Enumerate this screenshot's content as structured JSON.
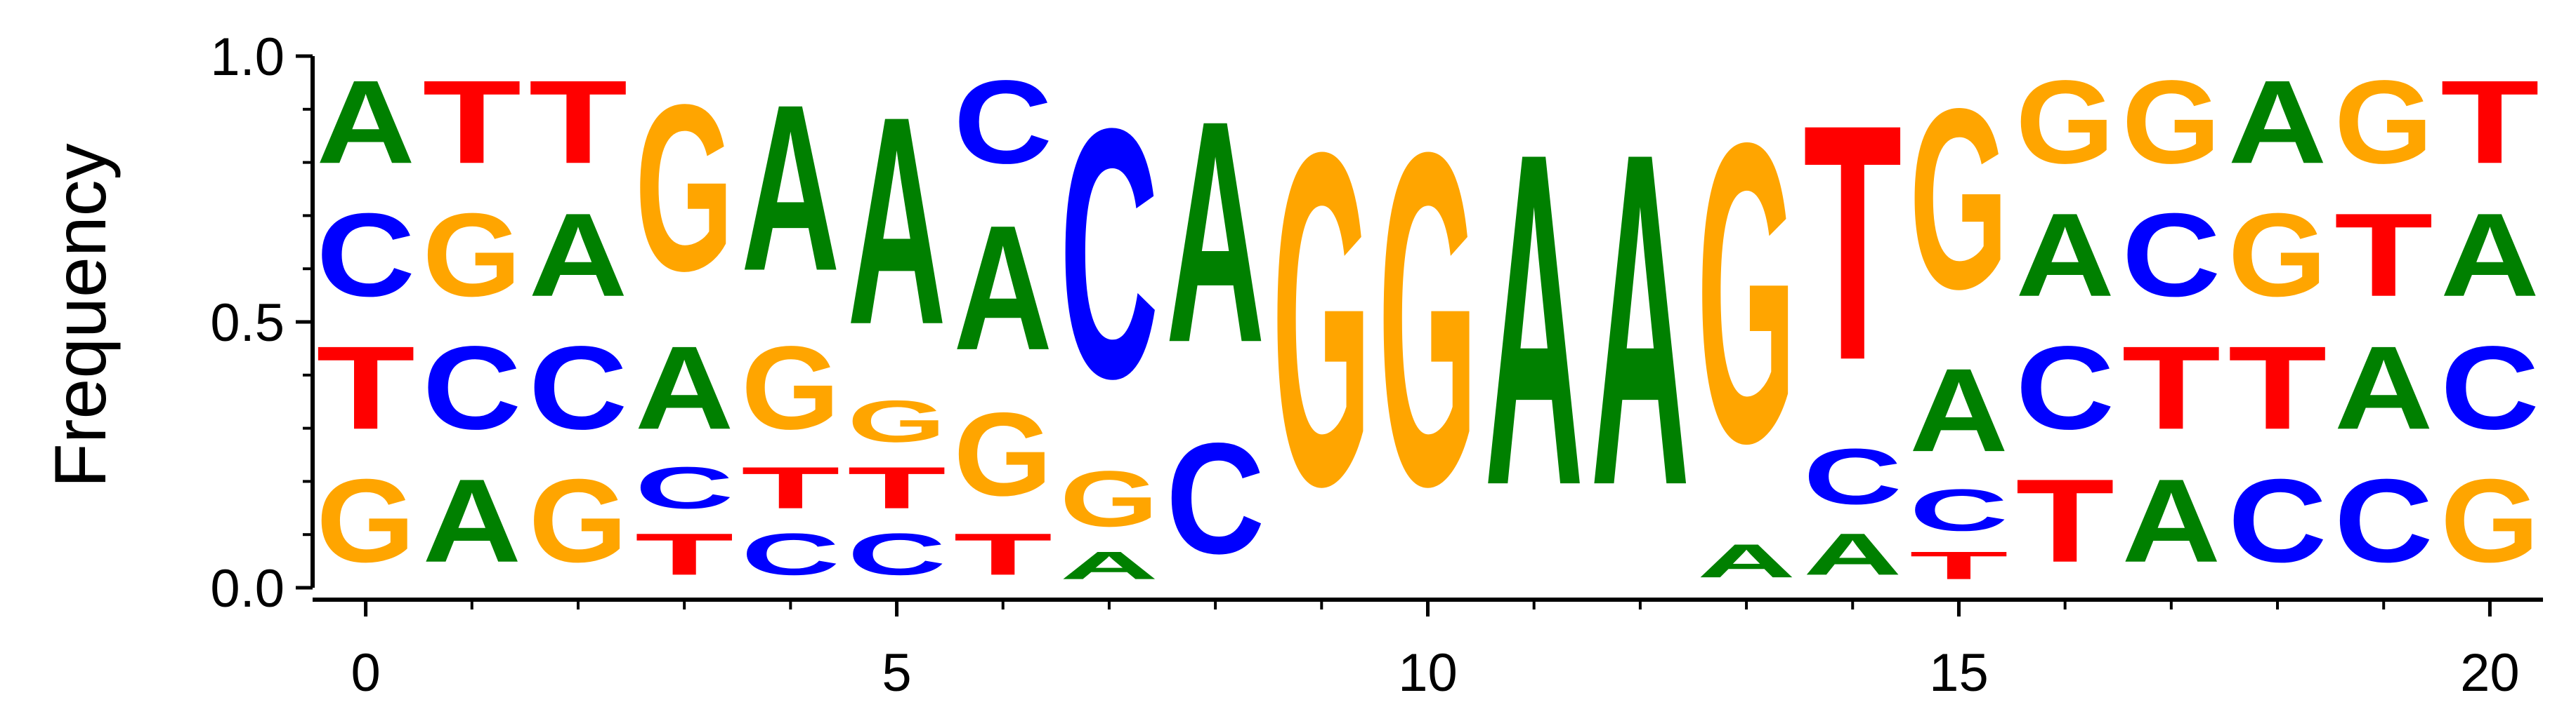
{
  "chart_data": {
    "type": "sequence-logo",
    "ylabel": "Frequency",
    "xlim": [
      -0.5,
      20.5
    ],
    "ylim": [
      0,
      1
    ],
    "xticks": [
      0,
      5,
      10,
      15,
      20
    ],
    "xtick_labels": [
      "0",
      "5",
      "10",
      "15",
      "20"
    ],
    "yticks": [
      0.0,
      0.5,
      1.0
    ],
    "ytick_labels": [
      "0.0",
      "0.5",
      "1.0"
    ],
    "colors": {
      "A": "#008000",
      "C": "#0000ff",
      "G": "#ffa500",
      "T": "#ff0000"
    },
    "positions": [
      {
        "x": 0,
        "stack": [
          [
            "G",
            0.25
          ],
          [
            "T",
            0.25
          ],
          [
            "C",
            0.25
          ],
          [
            "A",
            0.25
          ]
        ]
      },
      {
        "x": 1,
        "stack": [
          [
            "A",
            0.25
          ],
          [
            "C",
            0.25
          ],
          [
            "G",
            0.25
          ],
          [
            "T",
            0.25
          ]
        ]
      },
      {
        "x": 2,
        "stack": [
          [
            "G",
            0.25
          ],
          [
            "C",
            0.25
          ],
          [
            "A",
            0.25
          ],
          [
            "T",
            0.25
          ]
        ]
      },
      {
        "x": 3,
        "stack": [
          [
            "T",
            0.125
          ],
          [
            "C",
            0.125
          ],
          [
            "A",
            0.25
          ],
          [
            "G",
            0.5
          ]
        ]
      },
      {
        "x": 4,
        "stack": [
          [
            "C",
            0.125
          ],
          [
            "T",
            0.125
          ],
          [
            "G",
            0.25
          ],
          [
            "A",
            0.5
          ]
        ]
      },
      {
        "x": 5,
        "stack": [
          [
            "C",
            0.125
          ],
          [
            "T",
            0.125
          ],
          [
            "G",
            0.125
          ],
          [
            "A",
            0.625
          ]
        ]
      },
      {
        "x": 6,
        "stack": [
          [
            "T",
            0.125
          ],
          [
            "G",
            0.25
          ],
          [
            "A",
            0.375
          ],
          [
            "C",
            0.25
          ]
        ]
      },
      {
        "x": 7,
        "stack": [
          [
            "A",
            0.083
          ],
          [
            "G",
            0.167
          ],
          [
            "C",
            0.75
          ]
        ]
      },
      {
        "x": 8,
        "stack": [
          [
            "C",
            0.333
          ],
          [
            "A",
            0.667
          ]
        ]
      },
      {
        "x": 9,
        "stack": [
          [
            "G",
            1.0
          ]
        ]
      },
      {
        "x": 10,
        "stack": [
          [
            "G",
            1.0
          ]
        ]
      },
      {
        "x": 11,
        "stack": [
          [
            "A",
            1.0
          ]
        ]
      },
      {
        "x": 12,
        "stack": [
          [
            "A",
            1.0
          ]
        ]
      },
      {
        "x": 13,
        "stack": [
          [
            "A",
            0.1
          ],
          [
            "G",
            0.9
          ]
        ]
      },
      {
        "x": 14,
        "stack": [
          [
            "A",
            0.125
          ],
          [
            "C",
            0.167
          ],
          [
            "T",
            0.708
          ]
        ]
      },
      {
        "x": 15,
        "stack": [
          [
            "T",
            0.083
          ],
          [
            "C",
            0.125
          ],
          [
            "A",
            0.25
          ],
          [
            "G",
            0.542
          ]
        ]
      },
      {
        "x": 16,
        "stack": [
          [
            "T",
            0.25
          ],
          [
            "C",
            0.25
          ],
          [
            "A",
            0.25
          ],
          [
            "G",
            0.25
          ]
        ]
      },
      {
        "x": 17,
        "stack": [
          [
            "A",
            0.25
          ],
          [
            "T",
            0.25
          ],
          [
            "C",
            0.25
          ],
          [
            "G",
            0.25
          ]
        ]
      },
      {
        "x": 18,
        "stack": [
          [
            "C",
            0.25
          ],
          [
            "T",
            0.25
          ],
          [
            "G",
            0.25
          ],
          [
            "A",
            0.25
          ]
        ]
      },
      {
        "x": 19,
        "stack": [
          [
            "C",
            0.25
          ],
          [
            "A",
            0.25
          ],
          [
            "T",
            0.25
          ],
          [
            "G",
            0.25
          ]
        ]
      },
      {
        "x": 20,
        "stack": [
          [
            "G",
            0.25
          ],
          [
            "C",
            0.25
          ],
          [
            "A",
            0.25
          ],
          [
            "T",
            0.25
          ]
        ]
      }
    ]
  }
}
